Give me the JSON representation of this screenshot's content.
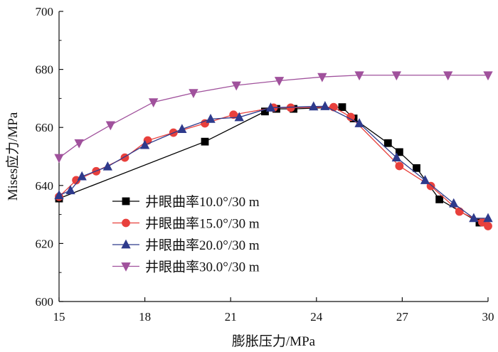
{
  "chart_data": {
    "type": "line",
    "xlabel": "膨胀压力/MPa",
    "ylabel": "Mises应力/MPa",
    "xlim": [
      15,
      30
    ],
    "ylim": [
      600,
      700
    ],
    "xticks": [
      15,
      18,
      21,
      24,
      27,
      30
    ],
    "yticks": [
      600,
      620,
      640,
      660,
      680,
      700
    ],
    "grid": false,
    "legend_position": "bottom-left",
    "series": [
      {
        "name": "井眼曲率10.0°/30 m",
        "color": "#000000",
        "marker": "square",
        "x": [
          15.0,
          20.1,
          22.2,
          22.6,
          23.2,
          24.9,
          25.3,
          26.5,
          26.9,
          27.5,
          28.3,
          29.7
        ],
        "y": [
          635.5,
          655.1,
          665.5,
          666.4,
          666.4,
          667.0,
          663.1,
          654.6,
          651.5,
          646.0,
          635.2,
          627.2
        ]
      },
      {
        "name": "井眼曲率15.0°/30 m",
        "color": "#e8403c",
        "marker": "circle",
        "x": [
          15.0,
          15.6,
          16.3,
          17.3,
          18.1,
          19.0,
          20.1,
          21.1,
          22.5,
          23.1,
          24.6,
          25.2,
          26.9,
          28.0,
          29.0,
          29.8,
          30.0
        ],
        "y": [
          636.1,
          641.8,
          644.9,
          649.6,
          655.5,
          658.2,
          661.4,
          664.4,
          666.8,
          666.8,
          667.0,
          663.6,
          646.7,
          639.8,
          631.0,
          627.3,
          626.0
        ]
      },
      {
        "name": "井眼曲率20.0°/30 m",
        "color": "#2e3a8c",
        "marker": "triangle-up",
        "x": [
          15.0,
          15.4,
          15.8,
          16.7,
          18.0,
          19.3,
          20.3,
          21.3,
          22.4,
          23.9,
          24.3,
          25.5,
          26.8,
          27.8,
          28.8,
          29.5,
          30.0
        ],
        "y": [
          636.6,
          638.3,
          643.1,
          646.5,
          653.9,
          659.4,
          662.9,
          663.5,
          666.8,
          667.2,
          667.3,
          661.4,
          649.6,
          641.8,
          633.8,
          628.7,
          628.7
        ]
      },
      {
        "name": "井眼曲率30.0°/30 m",
        "color": "#a0519c",
        "marker": "triangle-down",
        "x": [
          15.0,
          15.7,
          16.8,
          18.3,
          19.7,
          21.2,
          22.7,
          24.2,
          25.5,
          26.8,
          28.6,
          30.0
        ],
        "y": [
          649.5,
          654.6,
          660.8,
          668.7,
          671.9,
          674.5,
          676.1,
          677.4,
          678.0,
          678.0,
          678.0,
          678.0
        ]
      }
    ]
  }
}
